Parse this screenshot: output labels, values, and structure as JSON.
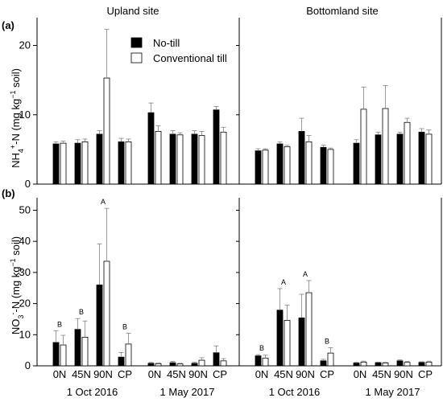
{
  "chart_data": {
    "type": "bar",
    "legend": {
      "placement": "top-center",
      "entries": [
        {
          "name": "No-till",
          "color": "#000000"
        },
        {
          "name": "Conventional till",
          "color": "#ffffff"
        }
      ]
    },
    "sites": [
      "Upland site",
      "Bottomland site"
    ],
    "dates": [
      "1 Oct 2016",
      "1 May 2017"
    ],
    "categories": [
      "0N",
      "45N",
      "90N",
      "CP"
    ],
    "panels": [
      {
        "tag": "(a)",
        "ylabel_main": "NH",
        "ylabel_sub": "4",
        "ylabel_sup": "+",
        "ylabel_mid": "-N (mg kg",
        "ylabel_sup2": "−1",
        "ylabel_end": " soil)",
        "ylim": [
          0,
          24
        ],
        "yticks": [
          0,
          10,
          20
        ],
        "groups": [
          {
            "site": "Upland site",
            "date": "1 Oct 2016",
            "no_till": [
              5.8,
              5.9,
              7.2,
              6.1
            ],
            "no_till_err": [
              0.3,
              0.5,
              0.5,
              0.5
            ],
            "conv_till": [
              5.9,
              6.1,
              15.3,
              6.1
            ],
            "conv_till_err": [
              0.3,
              0.4,
              7.0,
              0.4
            ],
            "letters": [
              "",
              "",
              "",
              ""
            ]
          },
          {
            "site": "Upland site",
            "date": "1 May 2017",
            "no_till": [
              10.3,
              7.2,
              7.2,
              10.7
            ],
            "no_till_err": [
              1.4,
              0.5,
              0.5,
              0.5
            ],
            "conv_till": [
              7.6,
              7.1,
              7.0,
              7.5
            ],
            "conv_till_err": [
              0.8,
              0.3,
              0.6,
              0.7
            ],
            "letters": [
              "",
              "",
              "",
              ""
            ]
          },
          {
            "site": "Bottomland site",
            "date": "1 Oct 2016",
            "no_till": [
              4.8,
              5.8,
              7.6,
              5.3
            ],
            "no_till_err": [
              0.3,
              0.3,
              1.9,
              0.3
            ],
            "conv_till": [
              4.9,
              5.4,
              6.1,
              5.0
            ],
            "conv_till_err": [
              0.2,
              0.2,
              0.9,
              0.2
            ],
            "letters": [
              "",
              "",
              "",
              ""
            ]
          },
          {
            "site": "Bottomland site",
            "date": "1 May 2017",
            "no_till": [
              5.9,
              7.1,
              7.2,
              7.5
            ],
            "no_till_err": [
              0.5,
              0.4,
              0.3,
              0.5
            ],
            "conv_till": [
              10.8,
              10.9,
              8.9,
              7.2
            ],
            "conv_till_err": [
              3.2,
              3.3,
              0.6,
              0.6
            ],
            "letters": [
              "",
              "",
              "",
              ""
            ]
          }
        ]
      },
      {
        "tag": "(b)",
        "ylabel_main": "NO",
        "ylabel_sub": "3",
        "ylabel_sup": "-",
        "ylabel_mid": "-N (mg kg",
        "ylabel_sup2": "−1",
        "ylabel_end": " soil)",
        "ylim": [
          0,
          54
        ],
        "yticks": [
          0,
          10,
          20,
          30,
          40,
          50
        ],
        "groups": [
          {
            "site": "Upland site",
            "date": "1 Oct 2016",
            "no_till": [
              7.5,
              11.7,
              26.0,
              2.8
            ],
            "no_till_err": [
              3.8,
              3.5,
              13.2,
              1.5
            ],
            "conv_till": [
              6.7,
              9.2,
              33.6,
              7.0
            ],
            "conv_till_err": [
              3.1,
              5.2,
              17.0,
              3.5
            ],
            "letters": [
              "B",
              "B",
              "A",
              "B"
            ]
          },
          {
            "site": "Upland site",
            "date": "1 May 2017",
            "no_till": [
              0.8,
              1.0,
              0.8,
              4.2
            ],
            "no_till_err": [
              0.3,
              0.4,
              0.4,
              2.2
            ],
            "conv_till": [
              0.7,
              0.6,
              1.8,
              1.6
            ],
            "conv_till_err": [
              0.2,
              0.2,
              0.8,
              0.7
            ],
            "letters": [
              "",
              "",
              "",
              ""
            ]
          },
          {
            "site": "Bottomland site",
            "date": "1 Oct 2016",
            "no_till": [
              3.2,
              17.9,
              15.4,
              1.6
            ],
            "no_till_err": [
              0.4,
              6.9,
              7.6,
              0.5
            ],
            "conv_till": [
              2.5,
              14.6,
              23.5,
              4.1
            ],
            "conv_till_err": [
              0.9,
              4.9,
              3.9,
              1.7
            ],
            "letters": [
              "B",
              "A",
              "A",
              "B"
            ]
          },
          {
            "site": "Bottomland site",
            "date": "1 May 2017",
            "no_till": [
              0.9,
              1.0,
              1.6,
              1.1
            ],
            "no_till_err": [
              0.2,
              0.2,
              0.3,
              0.2
            ],
            "conv_till": [
              1.2,
              0.9,
              1.1,
              1.2
            ],
            "conv_till_err": [
              0.3,
              0.2,
              0.3,
              0.3
            ],
            "letters": [
              "",
              "",
              "",
              ""
            ]
          }
        ]
      }
    ]
  }
}
